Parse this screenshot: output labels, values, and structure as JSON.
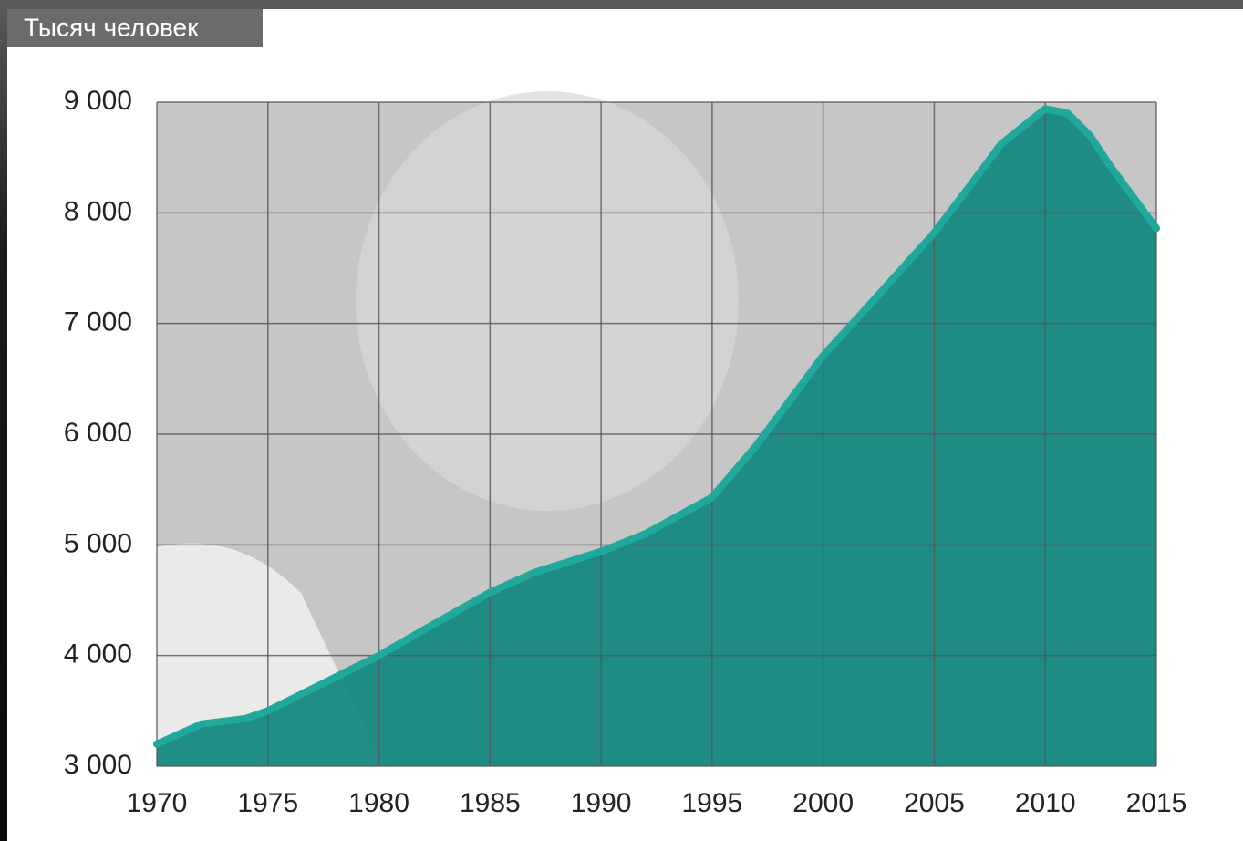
{
  "chart_data": {
    "type": "area",
    "title": "Тысяч человек",
    "x": [
      1970,
      1972,
      1974,
      1975,
      1977,
      1980,
      1982,
      1985,
      1987,
      1990,
      1992,
      1995,
      1997,
      2000,
      2002,
      2005,
      2007,
      2008,
      2010,
      2011,
      2012,
      2013,
      2015
    ],
    "values": [
      3200,
      3380,
      3430,
      3500,
      3700,
      4000,
      4230,
      4570,
      4750,
      4940,
      5100,
      5430,
      5900,
      6710,
      7150,
      7820,
      8350,
      8620,
      8940,
      8900,
      8700,
      8400,
      7860
    ],
    "color": "#16897f",
    "line_color": "#20a89b",
    "xlim": [
      1970,
      2015
    ],
    "xticks": [
      1970,
      1975,
      1980,
      1985,
      1990,
      1995,
      2000,
      2005,
      2010,
      2015
    ],
    "ylim": [
      3000,
      9000
    ],
    "yticks": [
      {
        "value": 3000,
        "label": "3 000"
      },
      {
        "value": 4000,
        "label": "4 000"
      },
      {
        "value": 5000,
        "label": "5 000"
      },
      {
        "value": 6000,
        "label": "6 000"
      },
      {
        "value": 7000,
        "label": "7 000"
      },
      {
        "value": 8000,
        "label": "8 000"
      },
      {
        "value": 9000,
        "label": "9 000"
      }
    ],
    "grid": true
  }
}
